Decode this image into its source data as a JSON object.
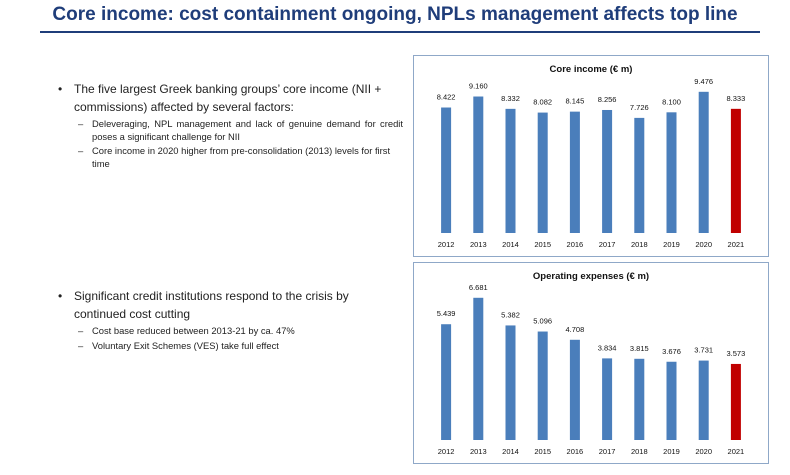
{
  "title": "Core income: cost containment ongoing, NPLs management affects top line",
  "bullets": [
    {
      "text": "The five largest Greek banking groups’ core income (NII + commissions) affected by several factors:",
      "subs": [
        "Deleveraging, NPL management and lack of genuine demand for credit poses a significant challenge for NII",
        "Core income in 2020 higher from pre-consolidation (2013) levels for first time"
      ]
    },
    {
      "text": "Significant credit institutions respond to the crisis by continued cost cutting",
      "subs": [
        "Cost base reduced between 2013-21 by ca. 47%",
        "Voluntary Exit Schemes (VES) take full effect"
      ]
    }
  ],
  "colors": {
    "blue_bar": "#4a7ebb",
    "red_bar": "#c00000",
    "title": "#1f3d7a",
    "panel_border": "#8fa8c8"
  },
  "chart_data": [
    {
      "type": "bar",
      "title": "Core income (€ m)",
      "categories": [
        "2012",
        "2013",
        "2014",
        "2015",
        "2016",
        "2017",
        "2018",
        "2019",
        "2020",
        "2021"
      ],
      "values": [
        8422,
        9160,
        8332,
        8082,
        8145,
        8256,
        7726,
        8100,
        9476,
        8333
      ],
      "labels": [
        "8.422",
        "9.160",
        "8.332",
        "8.082",
        "8.145",
        "8.256",
        "7.726",
        "8.100",
        "9.476",
        "8.333"
      ],
      "highlight_index": 9,
      "ylim": [
        0,
        10000
      ]
    },
    {
      "type": "bar",
      "title": "Operating expenses (€ m)",
      "categories": [
        "2012",
        "2013",
        "2014",
        "2015",
        "2016",
        "2017",
        "2018",
        "2019",
        "2020",
        "2021"
      ],
      "values": [
        5439,
        6681,
        5382,
        5096,
        4708,
        3834,
        3815,
        3676,
        3731,
        3573
      ],
      "labels": [
        "5.439",
        "6.681",
        "5.382",
        "5.096",
        "4.708",
        "3.834",
        "3.815",
        "3.676",
        "3.731",
        "3.573"
      ],
      "highlight_index": 9,
      "ylim": [
        0,
        7000
      ]
    }
  ]
}
